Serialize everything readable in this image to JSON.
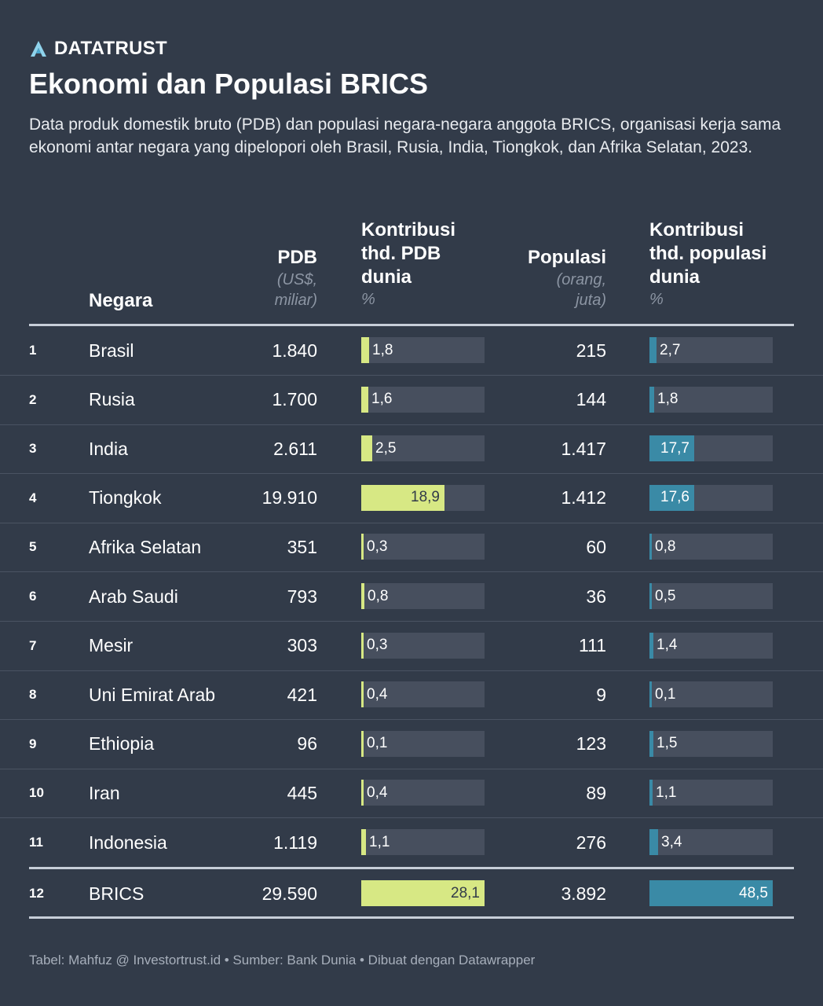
{
  "brand": {
    "name": "DATATRUST"
  },
  "title": "Ekonomi dan Populasi BRICS",
  "description": "Data produk domestik bruto (PDB) dan populasi negara-negara anggota BRICS, organisasi kerja sama ekonomi antar negara yang dipelopori oleh Brasil, Rusia, India, Tiongkok, dan Afrika Selatan, 2023.",
  "headers": {
    "negara": "Negara",
    "pdb": {
      "line1": "PDB",
      "unit1": "(US$,",
      "unit2": "miliar)"
    },
    "kontribusi_pdb": {
      "line1": "Kontribusi",
      "line2": "thd. PDB",
      "line3": "dunia",
      "unit": "%"
    },
    "populasi": {
      "line1": "Populasi",
      "unit1": "(orang,",
      "unit2": "juta)"
    },
    "kontribusi_pop": {
      "line1": "Kontribusi",
      "line2": "thd. populasi",
      "line3": "dunia",
      "unit": "%"
    }
  },
  "rows": [
    {
      "rank": "1",
      "country": "Brasil",
      "pdb": "1.840",
      "pdb_share": "1,8",
      "pdb_share_value": 1.8,
      "pop": "215",
      "pop_share": "2,7",
      "pop_share_value": 2.7
    },
    {
      "rank": "2",
      "country": "Rusia",
      "pdb": "1.700",
      "pdb_share": "1,6",
      "pdb_share_value": 1.6,
      "pop": "144",
      "pop_share": "1,8",
      "pop_share_value": 1.8
    },
    {
      "rank": "3",
      "country": "India",
      "pdb": "2.611",
      "pdb_share": "2,5",
      "pdb_share_value": 2.5,
      "pop": "1.417",
      "pop_share": "17,7",
      "pop_share_value": 17.7
    },
    {
      "rank": "4",
      "country": "Tiongkok",
      "pdb": "19.910",
      "pdb_share": "18,9",
      "pdb_share_value": 18.9,
      "pop": "1.412",
      "pop_share": "17,6",
      "pop_share_value": 17.6
    },
    {
      "rank": "5",
      "country": "Afrika Selatan",
      "pdb": "351",
      "pdb_share": "0,3",
      "pdb_share_value": 0.3,
      "pop": "60",
      "pop_share": "0,8",
      "pop_share_value": 0.8
    },
    {
      "rank": "6",
      "country": "Arab Saudi",
      "pdb": "793",
      "pdb_share": "0,8",
      "pdb_share_value": 0.8,
      "pop": "36",
      "pop_share": "0,5",
      "pop_share_value": 0.5
    },
    {
      "rank": "7",
      "country": "Mesir",
      "pdb": "303",
      "pdb_share": "0,3",
      "pdb_share_value": 0.3,
      "pop": "111",
      "pop_share": "1,4",
      "pop_share_value": 1.4
    },
    {
      "rank": "8",
      "country": "Uni Emirat Arab",
      "pdb": "421",
      "pdb_share": "0,4",
      "pdb_share_value": 0.4,
      "pop": "9",
      "pop_share": "0,1",
      "pop_share_value": 0.1
    },
    {
      "rank": "9",
      "country": "Ethiopia",
      "pdb": "96",
      "pdb_share": "0,1",
      "pdb_share_value": 0.1,
      "pop": "123",
      "pop_share": "1,5",
      "pop_share_value": 1.5
    },
    {
      "rank": "10",
      "country": "Iran",
      "pdb": "445",
      "pdb_share": "0,4",
      "pdb_share_value": 0.4,
      "pop": "89",
      "pop_share": "1,1",
      "pop_share_value": 1.1
    },
    {
      "rank": "11",
      "country": "Indonesia",
      "pdb": "1.119",
      "pdb_share": "1,1",
      "pdb_share_value": 1.1,
      "pop": "276",
      "pop_share": "3,4",
      "pop_share_value": 3.4
    }
  ],
  "total": {
    "rank": "12",
    "country": "BRICS",
    "pdb": "29.590",
    "pdb_share": "28,1",
    "pdb_share_value": 28.1,
    "pop": "3.892",
    "pop_share": "48,5",
    "pop_share_value": 48.5
  },
  "scale_max": {
    "pdb_share": 28.1,
    "pop_share": 48.5
  },
  "colors": {
    "background": "#323b49",
    "pdb_bar": "#d7e884",
    "pop_bar": "#3a8aa6",
    "bar_track": "#474f5e"
  },
  "footer": "Tabel: Mahfuz @ Investortrust.id • Sumber: Bank Dunia • Dibuat dengan Datawrapper"
}
